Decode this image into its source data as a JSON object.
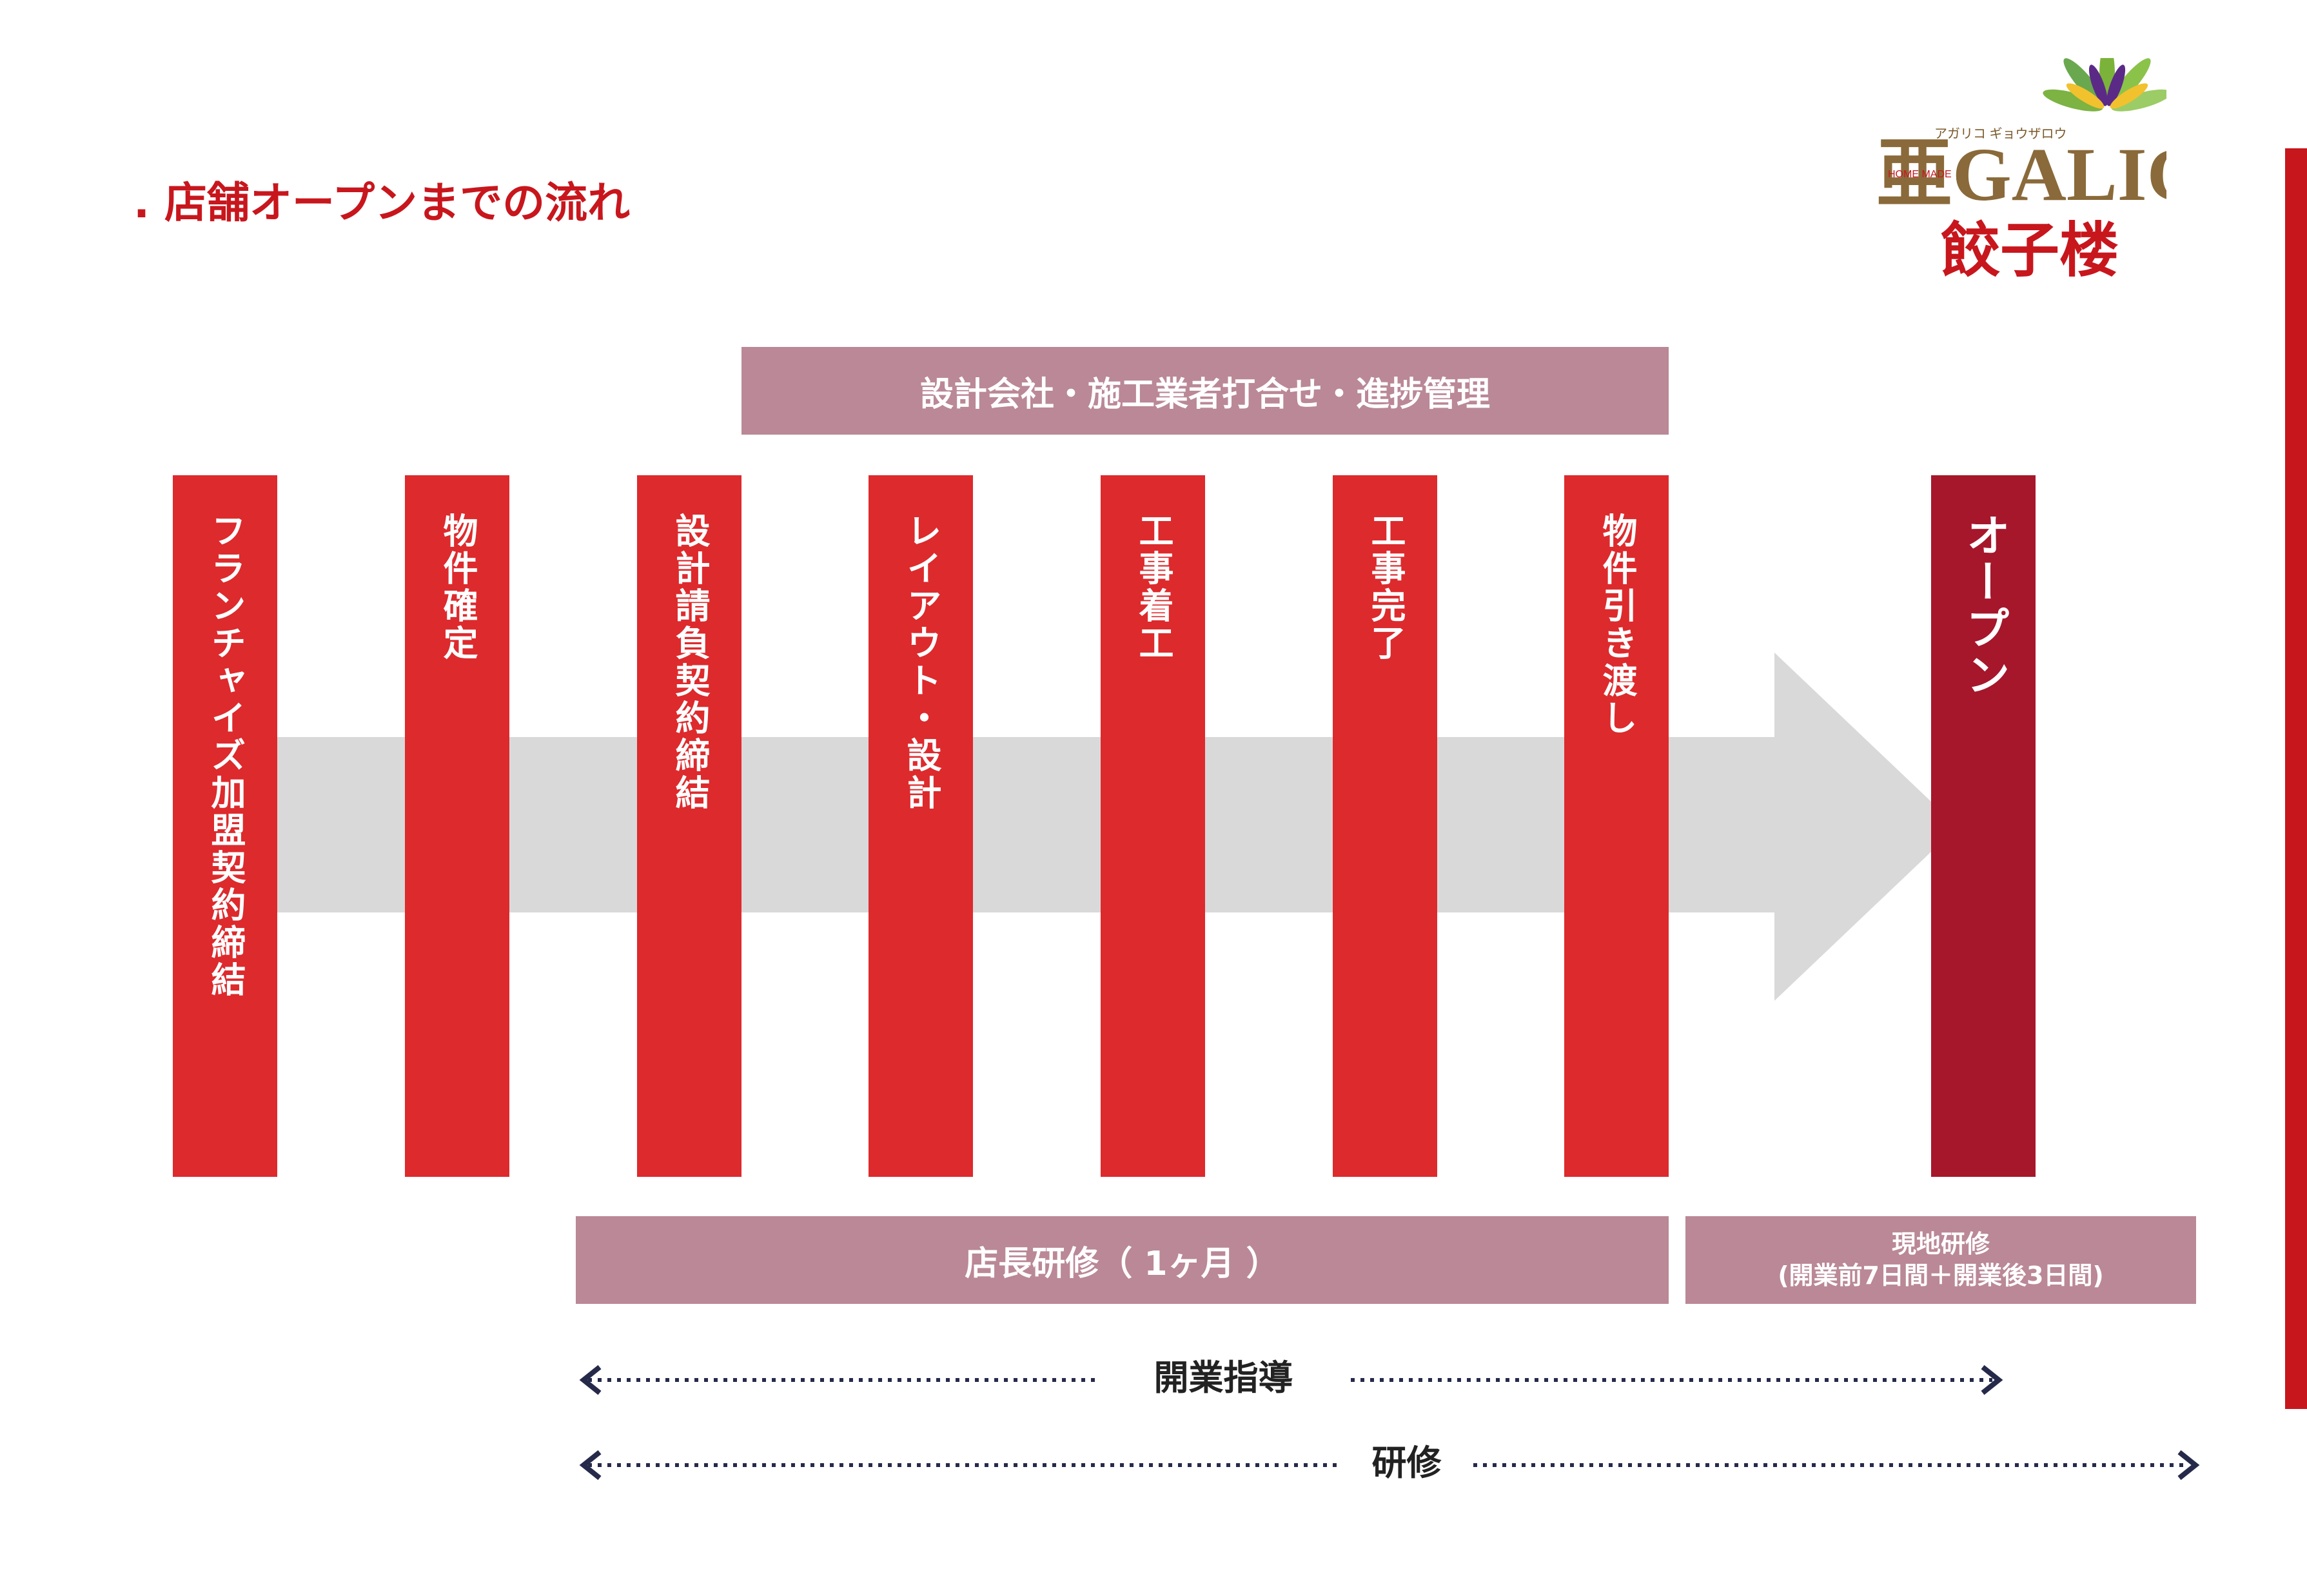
{
  "header": {
    "title": ". 店舗オープンまでの流れ"
  },
  "logo": {
    "brand": "亜GALICO",
    "ruby": "アガリコ ギョウザロウ",
    "tag": "HOME MADE",
    "subtitle": "餃子楼"
  },
  "bands": {
    "top": "設計会社・施工業者打合せ・進捗管理",
    "training": "店長研修（ 1ヶ月 ）",
    "local_line1": "現地研修",
    "local_line2": "(開業前7日間＋開業後3日間)"
  },
  "steps": [
    {
      "label": "フランチャイズ加盟契約締結"
    },
    {
      "label": "物件確定"
    },
    {
      "label": "設計請負契約締結"
    },
    {
      "label": "レイアウト・設計"
    },
    {
      "label": "工事着工"
    },
    {
      "label": "工事完了"
    },
    {
      "label": "物件引き渡し"
    },
    {
      "label": "オープン"
    }
  ],
  "guides": {
    "opening": "開業指導",
    "training": "研修"
  },
  "colors": {
    "step": "#dd2a2d",
    "open_step": "#a6172c",
    "band": "#ba8896",
    "arrow": "#d9d9d9",
    "title": "#c8161d"
  }
}
